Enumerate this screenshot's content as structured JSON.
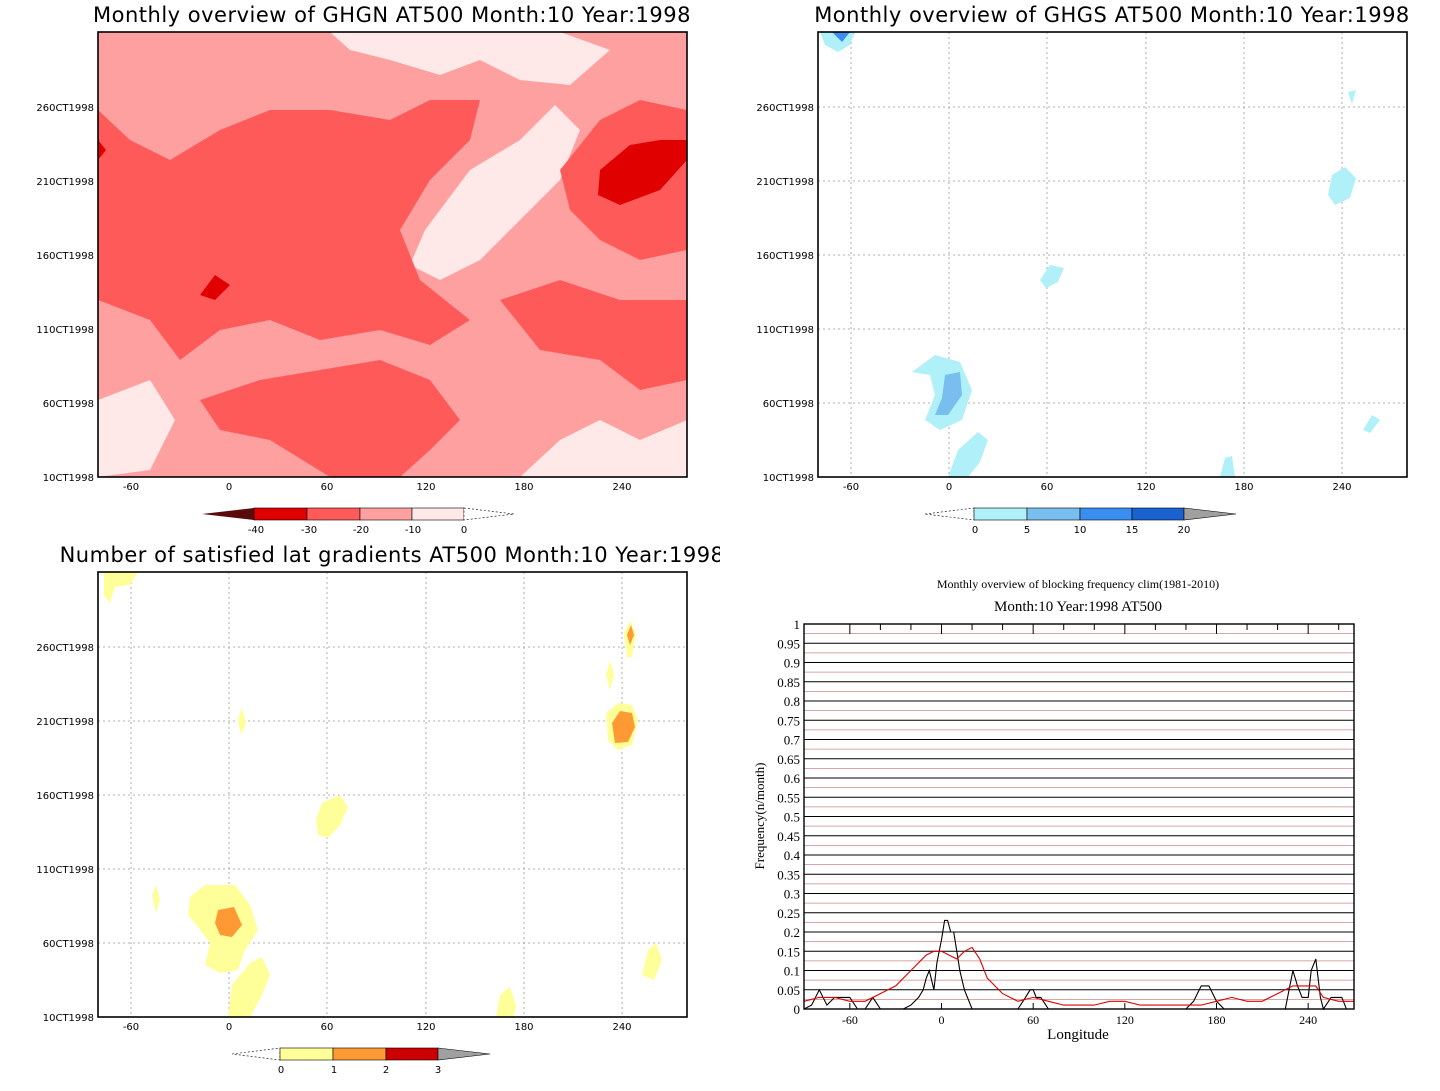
{
  "panels": [
    {
      "id": "ghgn",
      "title": "Monthly overview of GHGN AT500 Month:10 Year:1998",
      "x_ticks": [
        "-60",
        "0",
        "60",
        "120",
        "180",
        "240"
      ],
      "y_ticks": [
        "10CT1998",
        "60CT1998",
        "110CT1998",
        "160CT1998",
        "210CT1998",
        "260CT1998"
      ],
      "colorbar": [
        "-40",
        "-30",
        "-20",
        "-10",
        "0"
      ],
      "colors": [
        "#5a0a0a",
        "#e00000",
        "#ff5a5a",
        "#ffa0a0",
        "#ffe8e8"
      ]
    },
    {
      "id": "ghgs",
      "title": "Monthly overview of GHGS AT500 Month:10 Year:1998",
      "x_ticks": [
        "-60",
        "0",
        "60",
        "120",
        "180",
        "240"
      ],
      "y_ticks": [
        "10CT1998",
        "60CT1998",
        "110CT1998",
        "160CT1998",
        "210CT1998",
        "260CT1998"
      ],
      "colorbar": [
        "0",
        "5",
        "10",
        "15",
        "20"
      ],
      "colors": [
        "#b0f0f8",
        "#78bff0",
        "#3a8ef0",
        "#1a62d0",
        "#a0a0a0"
      ]
    },
    {
      "id": "lat",
      "title": "Number of satisfied lat gradients AT500 Month:10 Year:1998",
      "x_ticks": [
        "-60",
        "0",
        "60",
        "120",
        "180",
        "240"
      ],
      "y_ticks": [
        "10CT1998",
        "60CT1998",
        "110CT1998",
        "160CT1998",
        "210CT1998",
        "260CT1998"
      ],
      "colorbar": [
        "0",
        "1",
        "2",
        "3"
      ],
      "colors": [
        "#ffff99",
        "#ff9933",
        "#cc0000",
        "#a0a0a0"
      ]
    }
  ],
  "chart_data": {
    "type": "line",
    "title": "Monthly overview of blocking frequency clim(1981-2010)",
    "subtitle": "Month:10 Year:1998  AT500",
    "xlabel": "Longitude",
    "ylabel": "Frequency(n/month)",
    "xlim": [
      -90,
      270
    ],
    "ylim": [
      0,
      1
    ],
    "x_ticks": [
      "-60",
      "0",
      "60",
      "120",
      "180",
      "240"
    ],
    "y_ticks": [
      "0",
      "0.05",
      "0.1",
      "0.15",
      "0.2",
      "0.25",
      "0.3",
      "0.35",
      "0.4",
      "0.45",
      "0.5",
      "0.55",
      "0.6",
      "0.65",
      "0.7",
      "0.75",
      "0.8",
      "0.85",
      "0.9",
      "0.95",
      "1"
    ],
    "series": [
      {
        "color": "#000000",
        "x": [
          -90,
          -85,
          -80,
          -75,
          -70,
          -65,
          -60,
          -55,
          -50,
          -45,
          -40,
          -35,
          -30,
          -25,
          -20,
          -15,
          -12,
          -10,
          -8,
          -5,
          -3,
          0,
          2,
          4,
          6,
          8,
          10,
          12,
          15,
          20,
          25,
          30,
          40,
          50,
          55,
          58,
          60,
          62,
          65,
          70,
          80,
          100,
          150,
          160,
          165,
          170,
          175,
          180,
          185,
          200,
          225,
          230,
          233,
          236,
          240,
          242,
          245,
          248,
          250,
          255,
          258,
          262,
          265,
          270
        ],
        "values": [
          0,
          0.01,
          0.05,
          0.01,
          0.03,
          0.03,
          0.03,
          0,
          0.0,
          0.03,
          0,
          0,
          0,
          0,
          0.01,
          0.03,
          0.05,
          0.08,
          0.1,
          0.05,
          0.12,
          0.18,
          0.23,
          0.23,
          0.2,
          0.2,
          0.15,
          0.1,
          0.05,
          0,
          0,
          0,
          0,
          0,
          0.03,
          0.05,
          0.05,
          0.03,
          0.03,
          0,
          0,
          0,
          0,
          0,
          0.02,
          0.06,
          0.06,
          0.02,
          0,
          0,
          0,
          0.1,
          0.06,
          0.03,
          0.03,
          0.1,
          0.13,
          0.03,
          0,
          0.03,
          0.03,
          0.03,
          0,
          0
        ]
      },
      {
        "color": "#e00000",
        "x": [
          -90,
          -80,
          -70,
          -60,
          -50,
          -40,
          -30,
          -20,
          -10,
          -5,
          0,
          5,
          10,
          15,
          20,
          25,
          30,
          40,
          50,
          60,
          70,
          80,
          90,
          100,
          110,
          120,
          130,
          140,
          150,
          160,
          170,
          180,
          190,
          200,
          210,
          220,
          230,
          240,
          245,
          250,
          260,
          270
        ],
        "values": [
          0.02,
          0.03,
          0.03,
          0.02,
          0.02,
          0.04,
          0.06,
          0.1,
          0.14,
          0.15,
          0.15,
          0.14,
          0.13,
          0.15,
          0.16,
          0.13,
          0.08,
          0.04,
          0.02,
          0.03,
          0.02,
          0.01,
          0.01,
          0.01,
          0.02,
          0.02,
          0.01,
          0.01,
          0.01,
          0.01,
          0.01,
          0.02,
          0.03,
          0.02,
          0.02,
          0.04,
          0.06,
          0.06,
          0.06,
          0.03,
          0.02,
          0.02
        ]
      }
    ]
  }
}
